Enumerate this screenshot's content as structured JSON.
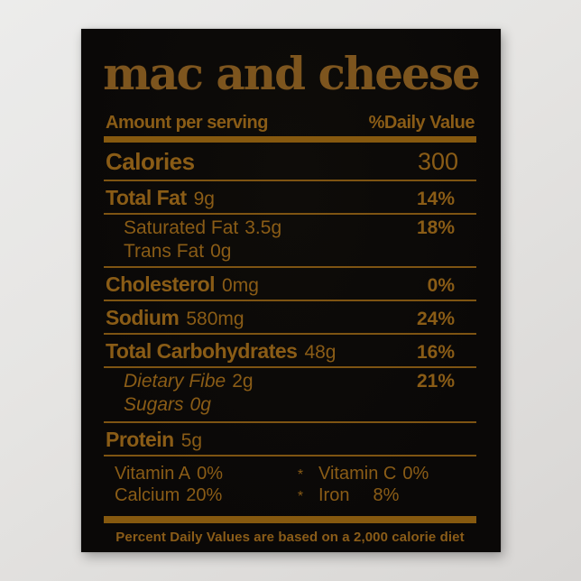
{
  "colors": {
    "accent_text": "#8a5c16",
    "title_text": "#7d551e",
    "divider": "#7e5412",
    "poster_background": "#0c0a08",
    "wall_background": "#e2e1df"
  },
  "poster": {
    "title": "mac and cheese",
    "header": {
      "left": "Amount per serving",
      "right": "%Daily Value"
    },
    "rows": [
      {
        "label": "Calories",
        "amount": "",
        "value": "300"
      },
      {
        "label": "Total Fat",
        "amount": "9g",
        "value": "14%"
      },
      {
        "label": "Saturated Fat",
        "amount": "3.5g",
        "value": "18%"
      },
      {
        "label": "Trans Fat",
        "amount": "0g",
        "value": ""
      },
      {
        "label": "Cholesterol",
        "amount": "0mg",
        "value": "0%"
      },
      {
        "label": "Sodium",
        "amount": "580mg",
        "value": "24%"
      },
      {
        "label": "Total Carbohydrates",
        "amount": "48g",
        "value": "16%"
      },
      {
        "label": "Dietary Fibe",
        "amount": "2g",
        "value": "21%"
      },
      {
        "label": "Sugars",
        "amount": "0g",
        "value": ""
      },
      {
        "label": "Protein",
        "amount": "5g",
        "value": ""
      }
    ],
    "vitamins": [
      {
        "left_name": "Vitamin A",
        "left_value": "0%",
        "separator": "*",
        "right_name": "Vitamin C",
        "right_value": "0%"
      },
      {
        "left_name": "Calcium",
        "left_value": "20%",
        "separator": "*",
        "right_name": "Iron",
        "right_value": "8%"
      }
    ],
    "footnote": "Percent Daily Values are based on a 2,000 calorie diet"
  }
}
